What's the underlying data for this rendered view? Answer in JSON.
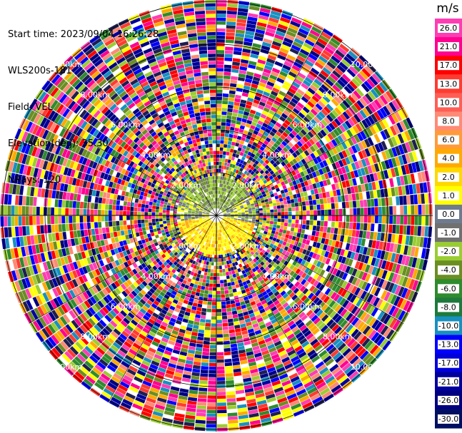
{
  "header": {
    "start_time": "Start time: 2023/09/04 16:26:28",
    "instrument": "WLS200s-181",
    "field": "Field: VEL",
    "elevation": "Elevation(deg): 35.30",
    "nrays": "NRays: 120"
  },
  "colorbar": {
    "unit": "m/s",
    "ticks": [
      "26.0",
      "21.0",
      "17.0",
      "13.0",
      "10.0",
      "8.0",
      "6.0",
      "4.0",
      "2.0",
      "1.0",
      "0.0",
      "-1.0",
      "-2.0",
      "-4.0",
      "-6.0",
      "-8.0",
      "-10.0",
      "-13.0",
      "-17.0",
      "-21.0",
      "-26.0",
      "-30.0"
    ],
    "colors": [
      "#ff3db3",
      "#ff0090",
      "#ff0000",
      "#ff3b30",
      "#ff5e55",
      "#ff8a75",
      "#ff9b3a",
      "#ffaa00",
      "#ffd800",
      "#ffff00",
      "#6e7b8f",
      "#707070",
      "#9acd32",
      "#6b8e23",
      "#2e8b2e",
      "#1e7a3c",
      "#1890c0",
      "#0000ff",
      "#0000d8",
      "#00009c",
      "#000080",
      "#001060"
    ]
  },
  "range_rings": {
    "labels": [
      "2.00km",
      "4.00km",
      "6.00km",
      "8.00km",
      "10.00km"
    ]
  },
  "map": {
    "rays": 120,
    "gates": 60,
    "inner_colors": [
      "#ffff00",
      "#ffd800",
      "#ffaa00",
      "#6e7b8f",
      "#707070",
      "#9acd32",
      "#6b8e23"
    ],
    "outer_colors": [
      "#ff3db3",
      "#ff0090",
      "#ff0000",
      "#ff3b30",
      "#ff8a75",
      "#ffaa00",
      "#ffff00",
      "#9acd32",
      "#6b8e23",
      "#2e8b2e",
      "#1890c0",
      "#0000ff",
      "#00009c",
      "#000080",
      "#1e1e50"
    ]
  }
}
